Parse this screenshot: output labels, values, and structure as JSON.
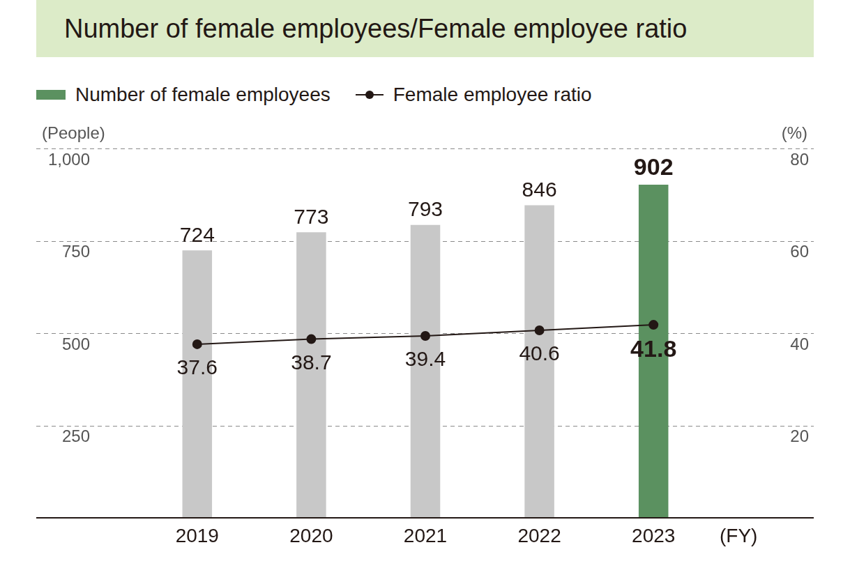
{
  "chart_data": {
    "type": "bar",
    "title": "Number of female employees/Female employee ratio",
    "categories": [
      "2019",
      "2020",
      "2021",
      "2022",
      "2023"
    ],
    "series": [
      {
        "name": "Number of female employees",
        "type": "bar",
        "color": "#5b9160",
        "colors": [
          "#c8c8c8",
          "#c8c8c8",
          "#c8c8c8",
          "#c8c8c8",
          "#5b9160"
        ],
        "values": [
          724,
          773,
          793,
          846,
          902
        ]
      },
      {
        "name": "Female employee ratio",
        "type": "line",
        "color": "#231815",
        "marker": "circle",
        "axis": "y2",
        "values": [
          37.6,
          38.7,
          39.4,
          40.6,
          41.8
        ]
      }
    ],
    "y_label": "(People)",
    "y2_label": "(%)",
    "x_label": "(FY)",
    "ylim": [
      0,
      1000
    ],
    "yticks": [
      250,
      500,
      750,
      {
        "value": 1000,
        "label": "1,000"
      }
    ],
    "y2lim": [
      0,
      80
    ],
    "y2ticks": [
      20,
      40,
      60,
      80
    ],
    "grid": true,
    "data_labels": true,
    "legend": "top-left"
  }
}
